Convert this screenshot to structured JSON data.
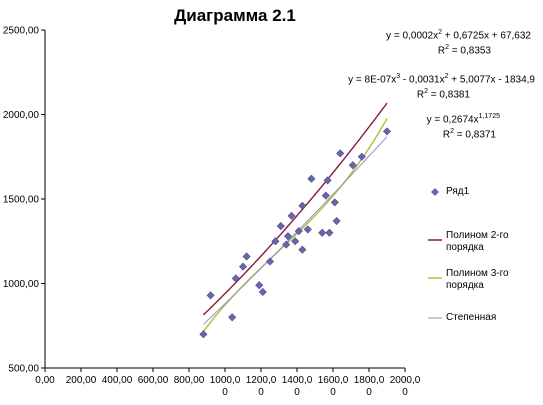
{
  "chart_data": {
    "type": "scatter",
    "title": "Диаграмма  2.1",
    "xlim": [
      0,
      2000
    ],
    "ylim": [
      500,
      2500
    ],
    "x_ticks": [
      "0,00",
      "200,00",
      "400,00",
      "600,00",
      "800,00",
      "1000,00",
      "1200,00",
      "1400,00",
      "1600,00",
      "1800,00",
      "2000,00"
    ],
    "y_ticks": [
      "500,00",
      "1000,00",
      "1500,00",
      "2000,00",
      "2500,00"
    ],
    "series": [
      {
        "name": "Ряд1",
        "color": "#6a67a8",
        "points": [
          [
            880,
            700
          ],
          [
            920,
            930
          ],
          [
            1040,
            800
          ],
          [
            1060,
            1030
          ],
          [
            1100,
            1100
          ],
          [
            1120,
            1160
          ],
          [
            1190,
            990
          ],
          [
            1210,
            950
          ],
          [
            1250,
            1130
          ],
          [
            1280,
            1250
          ],
          [
            1310,
            1340
          ],
          [
            1340,
            1230
          ],
          [
            1350,
            1280
          ],
          [
            1370,
            1400
          ],
          [
            1390,
            1250
          ],
          [
            1410,
            1310
          ],
          [
            1430,
            1200
          ],
          [
            1430,
            1460
          ],
          [
            1460,
            1320
          ],
          [
            1480,
            1620
          ],
          [
            1540,
            1300
          ],
          [
            1560,
            1520
          ],
          [
            1570,
            1610
          ],
          [
            1580,
            1300
          ],
          [
            1610,
            1480
          ],
          [
            1620,
            1370
          ],
          [
            1640,
            1770
          ],
          [
            1710,
            1700
          ],
          [
            1760,
            1750
          ],
          [
            1900,
            1900
          ]
        ]
      }
    ],
    "trendlines": [
      {
        "name": "Полином 2-го порядка",
        "type": "poly2",
        "color": "#8b1a3c",
        "coeffs": [
          67.632,
          0.6725,
          0.0002
        ]
      },
      {
        "name": "Полином 3-го порядка",
        "type": "poly3",
        "color": "#a8c23a",
        "coeffs": [
          -1834.9,
          5.0077,
          -0.0031,
          8e-07
        ]
      },
      {
        "name": "Степенная",
        "type": "power",
        "color": "#9a8fbf",
        "coeffs": [
          0.2674,
          1.1725
        ]
      }
    ],
    "equations": [
      {
        "main": "y = 0,0002x",
        "sup1": "2",
        "rest1": " + 0,6725x + 67,632",
        "sup2": "",
        "rest2": "",
        "r2": "R",
        "r2sup": "2",
        "r2val": " = 0,8353"
      },
      {
        "main": "y = 8E-07x",
        "sup1": "3",
        "rest1": " - 0,0031x",
        "sup2": "2",
        "rest2": " + 5,0077x - 1834,9",
        "r2": "R",
        "r2sup": "2",
        "r2val": " = 0,8381"
      },
      {
        "main": "y = 0,2674x",
        "sup1": "1,1725",
        "rest1": "",
        "sup2": "",
        "rest2": "",
        "r2": "R",
        "r2sup": "2",
        "r2val": " = 0,8371"
      }
    ],
    "legend": {
      "placement": "right",
      "items": [
        {
          "label": "Ряд1",
          "kind": "marker",
          "color": "#6a67a8"
        },
        {
          "label": "Полином 2-го порядка",
          "kind": "line",
          "color": "#8b1a3c"
        },
        {
          "label": "Полином 3-го порядка",
          "kind": "line",
          "color": "#a8c23a"
        },
        {
          "label": "Степенная",
          "kind": "line",
          "color": "#9a8fbf"
        }
      ]
    },
    "grid": false,
    "xlabel": "",
    "ylabel": ""
  }
}
